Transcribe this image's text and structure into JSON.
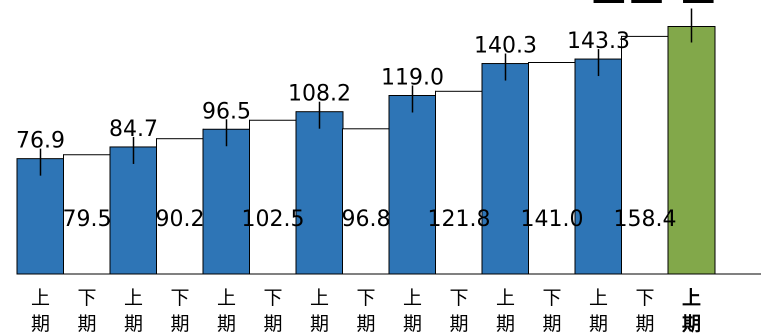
{
  "chart_data": {
    "type": "bar",
    "categories": [
      "上期",
      "下期",
      "上期",
      "下期",
      "上期",
      "下期",
      "上期",
      "下期",
      "上期",
      "下期",
      "上期",
      "下期",
      "上期",
      "下期",
      "上期"
    ],
    "values": [
      76.9,
      79.5,
      84.7,
      90.2,
      96.5,
      102.5,
      108.2,
      96.8,
      119.0,
      121.8,
      140.3,
      141.0,
      143.3,
      158.4,
      165.0
    ],
    "value_labels": [
      "76.9",
      "79.5",
      "84.7",
      "90.2",
      "96.5",
      "102.5",
      "108.2",
      "96.8",
      "119.0",
      "121.8",
      "140.3",
      "141.0",
      "143.3",
      "158.4",
      ""
    ],
    "tick_top": [
      "上",
      "下",
      "上",
      "下",
      "上",
      "下",
      "上",
      "下",
      "上",
      "下",
      "上",
      "下",
      "上",
      "下",
      "上"
    ],
    "tick_bottom": [
      "期",
      "期",
      "期",
      "期",
      "期",
      "期",
      "期",
      "期",
      "期",
      "期",
      "期",
      "期",
      "期",
      "期",
      "期"
    ],
    "bar_fill": [
      "blue",
      "white",
      "blue",
      "white",
      "blue",
      "white",
      "blue",
      "white",
      "blue",
      "white",
      "blue",
      "white",
      "blue",
      "white",
      "green"
    ],
    "label_position": [
      "above",
      "inside",
      "above",
      "inside",
      "above",
      "inside",
      "above",
      "inside",
      "above",
      "inside",
      "above",
      "inside",
      "above",
      "inside",
      "none"
    ],
    "highlight_last": true,
    "ylim": [
      0,
      175
    ],
    "grid": false,
    "title": "",
    "xlabel": "",
    "ylabel": "",
    "colors": {
      "blue": "#2e75b6",
      "white": "#ffffff",
      "green": "#82a84a",
      "outline": "#000000"
    }
  }
}
